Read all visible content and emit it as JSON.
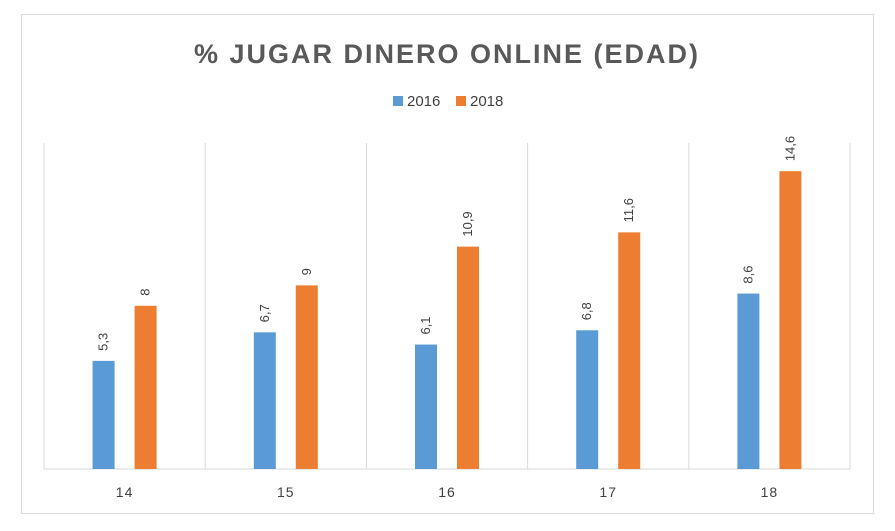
{
  "chart_data": {
    "type": "bar",
    "title": "% JUGAR DINERO ONLINE (EDAD)",
    "xlabel": "",
    "ylabel": "",
    "categories": [
      "14",
      "15",
      "16",
      "17",
      "18"
    ],
    "series": [
      {
        "name": "2016",
        "values": [
          5.3,
          6.7,
          6.1,
          6.8,
          8.6
        ],
        "labels": [
          "5,3",
          "6,7",
          "6,1",
          "6,8",
          "8,6"
        ],
        "color": "#5b9bd5"
      },
      {
        "name": "2018",
        "values": [
          8,
          9,
          10.9,
          11.6,
          14.6
        ],
        "labels": [
          "8",
          "9",
          "10,9",
          "11,6",
          "14,6"
        ],
        "color": "#ed7d31"
      }
    ],
    "ylim": [
      0,
      16
    ],
    "grid": "vertical category separators",
    "legend": "top-center",
    "data_labels": "rotated, above bars",
    "colors": {
      "gridline": "#d9d9d9",
      "text": "#595959"
    }
  }
}
